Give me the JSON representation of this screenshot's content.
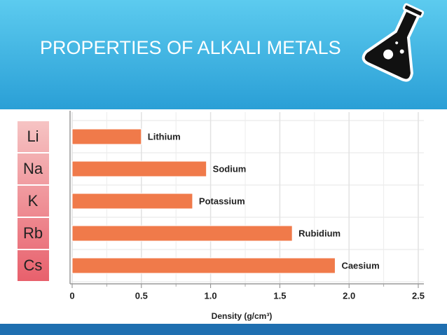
{
  "chart_data": {
    "type": "bar",
    "orientation": "horizontal",
    "title": "PROPERTIES OF ALKALI METALS",
    "row_labels": [
      "Li",
      "Na",
      "K",
      "Rb",
      "Cs"
    ],
    "categories": [
      "Lithium",
      "Sodium",
      "Potassium",
      "Rubidium",
      "Caesium"
    ],
    "values": [
      0.5,
      0.97,
      0.87,
      1.59,
      1.9
    ],
    "color": "#f07a4a",
    "xlim": [
      0,
      2.5
    ],
    "xticks": [
      0,
      0.5,
      {
        "value": 1,
        "label": "1.0"
      },
      1.5,
      {
        "value": 2,
        "label": "2.0"
      },
      2.5
    ],
    "x_label": "Density (g/cm³)",
    "grid": true
  }
}
